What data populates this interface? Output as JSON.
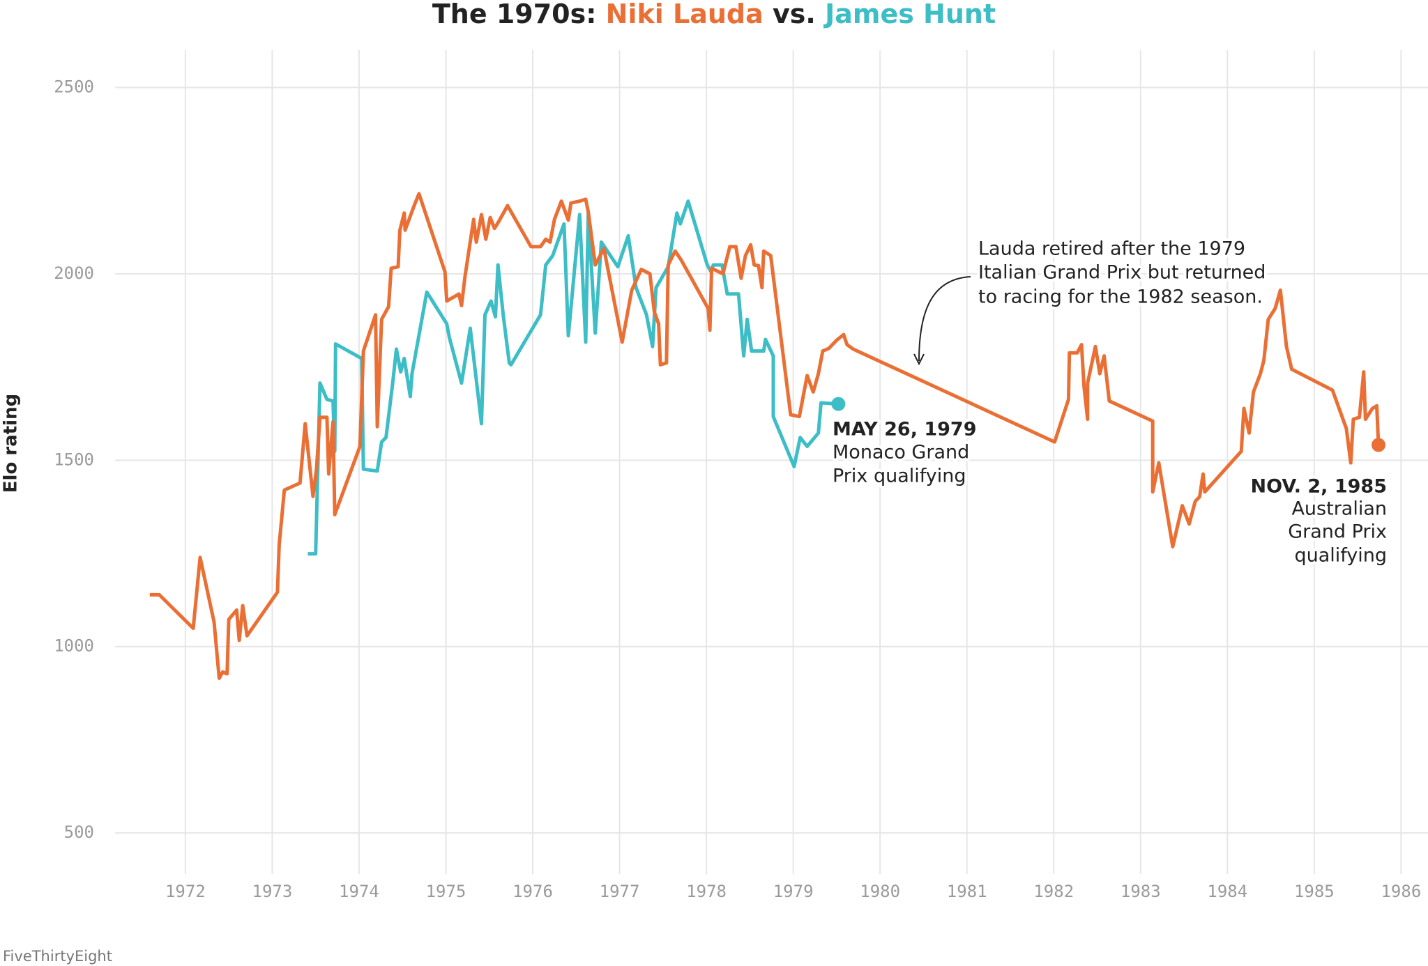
{
  "chart_data": {
    "type": "line",
    "title": "The 1970s:",
    "title_joiner": "vs.",
    "y_label": "Elo rating",
    "source": "FiveThirtyEight",
    "xlim": [
      1971.19,
      1986.31
    ],
    "ylim": [
      390,
      2600
    ],
    "xticks": [
      1972,
      1973,
      1974,
      1975,
      1976,
      1977,
      1978,
      1979,
      1980,
      1981,
      1982,
      1983,
      1984,
      1985,
      1986
    ],
    "yticks": [
      500,
      1000,
      1500,
      2000,
      2500
    ],
    "grid": true,
    "series": [
      {
        "name": "Niki Lauda",
        "color": "#ea6f35",
        "x": [
          1971.59,
          1971.7,
          1972.09,
          1972.17,
          1972.33,
          1972.39,
          1972.43,
          1972.48,
          1972.5,
          1972.59,
          1972.62,
          1972.66,
          1972.71,
          1973.06,
          1973.08,
          1973.14,
          1973.32,
          1973.38,
          1973.47,
          1973.51,
          1973.55,
          1973.63,
          1973.65,
          1973.7,
          1973.72,
          1974.01,
          1974.05,
          1974.19,
          1974.21,
          1974.26,
          1974.34,
          1974.37,
          1974.45,
          1974.47,
          1974.52,
          1974.53,
          1974.63,
          1974.69,
          1974.99,
          1975.01,
          1975.15,
          1975.18,
          1975.22,
          1975.32,
          1975.35,
          1975.41,
          1975.46,
          1975.51,
          1975.56,
          1975.61,
          1975.71,
          1975.98,
          1976.09,
          1976.15,
          1976.2,
          1976.25,
          1976.33,
          1976.41,
          1976.44,
          1976.54,
          1976.61,
          1976.64,
          1976.72,
          1976.82,
          1977.03,
          1977.14,
          1977.25,
          1977.35,
          1977.4,
          1977.45,
          1977.47,
          1977.54,
          1977.56,
          1977.64,
          1977.71,
          1978.02,
          1978.04,
          1978.06,
          1978.19,
          1978.27,
          1978.34,
          1978.4,
          1978.45,
          1978.51,
          1978.55,
          1978.6,
          1978.64,
          1978.66,
          1978.74,
          1978.97,
          1979.07,
          1979.16,
          1979.23,
          1979.29,
          1979.34,
          1979.41,
          1979.5,
          1979.58,
          1979.62,
          1979.69,
          1982.01,
          1982.17,
          1982.18,
          1982.27,
          1982.32,
          1982.35,
          1982.39,
          1982.39,
          1982.48,
          1982.53,
          1982.58,
          1982.64,
          1983.14,
          1983.14,
          1983.21,
          1983.37,
          1983.48,
          1983.56,
          1983.63,
          1983.68,
          1983.72,
          1983.74,
          1984.16,
          1984.19,
          1984.25,
          1984.3,
          1984.38,
          1984.42,
          1984.47,
          1984.55,
          1984.61,
          1984.68,
          1984.74,
          1985.21,
          1985.37,
          1985.42,
          1985.45,
          1985.52,
          1985.57,
          1985.59,
          1985.67,
          1985.72,
          1985.74
        ],
        "values": [
          1139,
          1139,
          1049,
          1239,
          1066,
          915,
          932,
          927,
          1073,
          1098,
          1017,
          1110,
          1029,
          1146,
          1273,
          1420,
          1439,
          1598,
          1403,
          1476,
          1615,
          1615,
          1463,
          1603,
          1354,
          1537,
          1793,
          1890,
          1590,
          1878,
          1912,
          2015,
          2019,
          2117,
          2163,
          2117,
          2180,
          2215,
          2005,
          1927,
          1946,
          1915,
          1993,
          2146,
          2085,
          2159,
          2093,
          2151,
          2122,
          2141,
          2183,
          2073,
          2073,
          2093,
          2085,
          2146,
          2195,
          2144,
          2190,
          2195,
          2200,
          2166,
          2024,
          2068,
          1817,
          1956,
          2012,
          2000,
          1898,
          1866,
          1756,
          1761,
          2024,
          2061,
          2037,
          1907,
          1849,
          2015,
          2000,
          2073,
          2073,
          1988,
          2049,
          2078,
          2024,
          2022,
          1963,
          2061,
          2049,
          1622,
          1617,
          1727,
          1683,
          1732,
          1793,
          1800,
          1822,
          1837,
          1810,
          1798,
          1549,
          1663,
          1788,
          1788,
          1810,
          1695,
          1610,
          1707,
          1805,
          1732,
          1780,
          1659,
          1605,
          1415,
          1493,
          1268,
          1378,
          1329,
          1390,
          1402,
          1463,
          1415,
          1524,
          1639,
          1573,
          1683,
          1732,
          1768,
          1878,
          1907,
          1956,
          1805,
          1744,
          1688,
          1585,
          1493,
          1610,
          1615,
          1737,
          1610,
          1639,
          1646,
          1541
        ]
      },
      {
        "name": "James Hunt",
        "color": "#3dbdc6",
        "x": [
          1973.41,
          1973.5,
          1973.55,
          1973.63,
          1973.7,
          1973.72,
          1973.73,
          1974.03,
          1974.05,
          1974.21,
          1974.26,
          1974.31,
          1974.39,
          1974.43,
          1974.48,
          1974.52,
          1974.59,
          1974.61,
          1974.78,
          1975.01,
          1975.04,
          1975.18,
          1975.28,
          1975.41,
          1975.45,
          1975.52,
          1975.57,
          1975.6,
          1975.66,
          1975.73,
          1975.75,
          1976.09,
          1976.15,
          1976.23,
          1976.36,
          1976.41,
          1976.54,
          1976.61,
          1976.64,
          1976.72,
          1976.79,
          1976.98,
          1977.1,
          1977.19,
          1977.31,
          1977.38,
          1977.42,
          1977.56,
          1977.66,
          1977.7,
          1977.79,
          1978.01,
          1978.05,
          1978.08,
          1978.18,
          1978.24,
          1978.37,
          1978.43,
          1978.47,
          1978.52,
          1978.66,
          1978.68,
          1978.77,
          1978.77,
          1979.01,
          1979.08,
          1979.16,
          1979.29,
          1979.32,
          1979.52
        ],
        "values": [
          1249,
          1249,
          1707,
          1663,
          1659,
          1524,
          1812,
          1773,
          1476,
          1471,
          1549,
          1561,
          1712,
          1798,
          1737,
          1773,
          1671,
          1732,
          1951,
          1866,
          1829,
          1707,
          1854,
          1598,
          1890,
          1927,
          1885,
          2024,
          1890,
          1761,
          1756,
          1890,
          2024,
          2049,
          2134,
          1834,
          2159,
          1817,
          2163,
          1841,
          2085,
          2019,
          2102,
          1963,
          1890,
          1805,
          1963,
          2019,
          2163,
          2134,
          2195,
          2024,
          2007,
          2024,
          2024,
          1946,
          1946,
          1780,
          1878,
          1793,
          1793,
          1824,
          1780,
          1617,
          1483,
          1561,
          1537,
          1573,
          1654,
          1651
        ]
      }
    ],
    "annotations": [
      {
        "title": "MAY 26, 1979",
        "lines": [
          "Monaco Grand",
          "Prix qualifying"
        ]
      },
      {
        "lines": [
          "Lauda retired after the 1979",
          "Italian Grand Prix but returned",
          "to racing for the 1982 season."
        ]
      },
      {
        "title": "NOV. 2, 1985",
        "lines": [
          "Australian",
          "Grand Prix",
          "qualifying"
        ]
      }
    ]
  }
}
